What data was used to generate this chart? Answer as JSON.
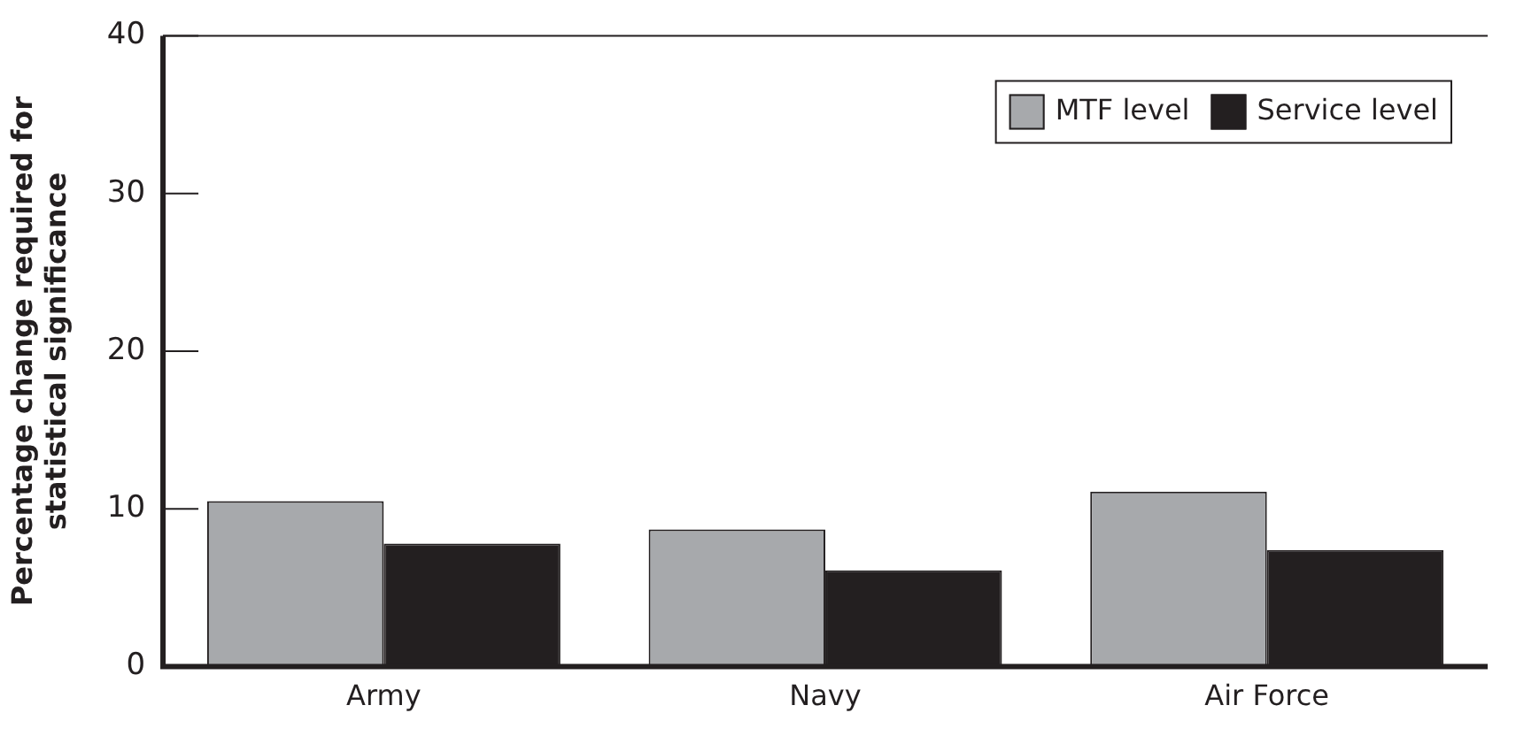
{
  "chart_data": {
    "type": "bar",
    "ylabel": "Percentage change required for\nstatistical significance",
    "categories": [
      "Army",
      "Navy",
      "Air Force"
    ],
    "series": [
      {
        "name": "MTF level",
        "color": "#a7a9ac",
        "values": [
          10.5,
          8.7,
          11.1
        ]
      },
      {
        "name": "Service level",
        "color": "#231f20",
        "values": [
          7.8,
          6.1,
          7.4
        ]
      }
    ],
    "ylim": [
      0,
      40
    ],
    "yticks": [
      0,
      10,
      20,
      30,
      40
    ],
    "grid": false,
    "legend": "top right"
  }
}
